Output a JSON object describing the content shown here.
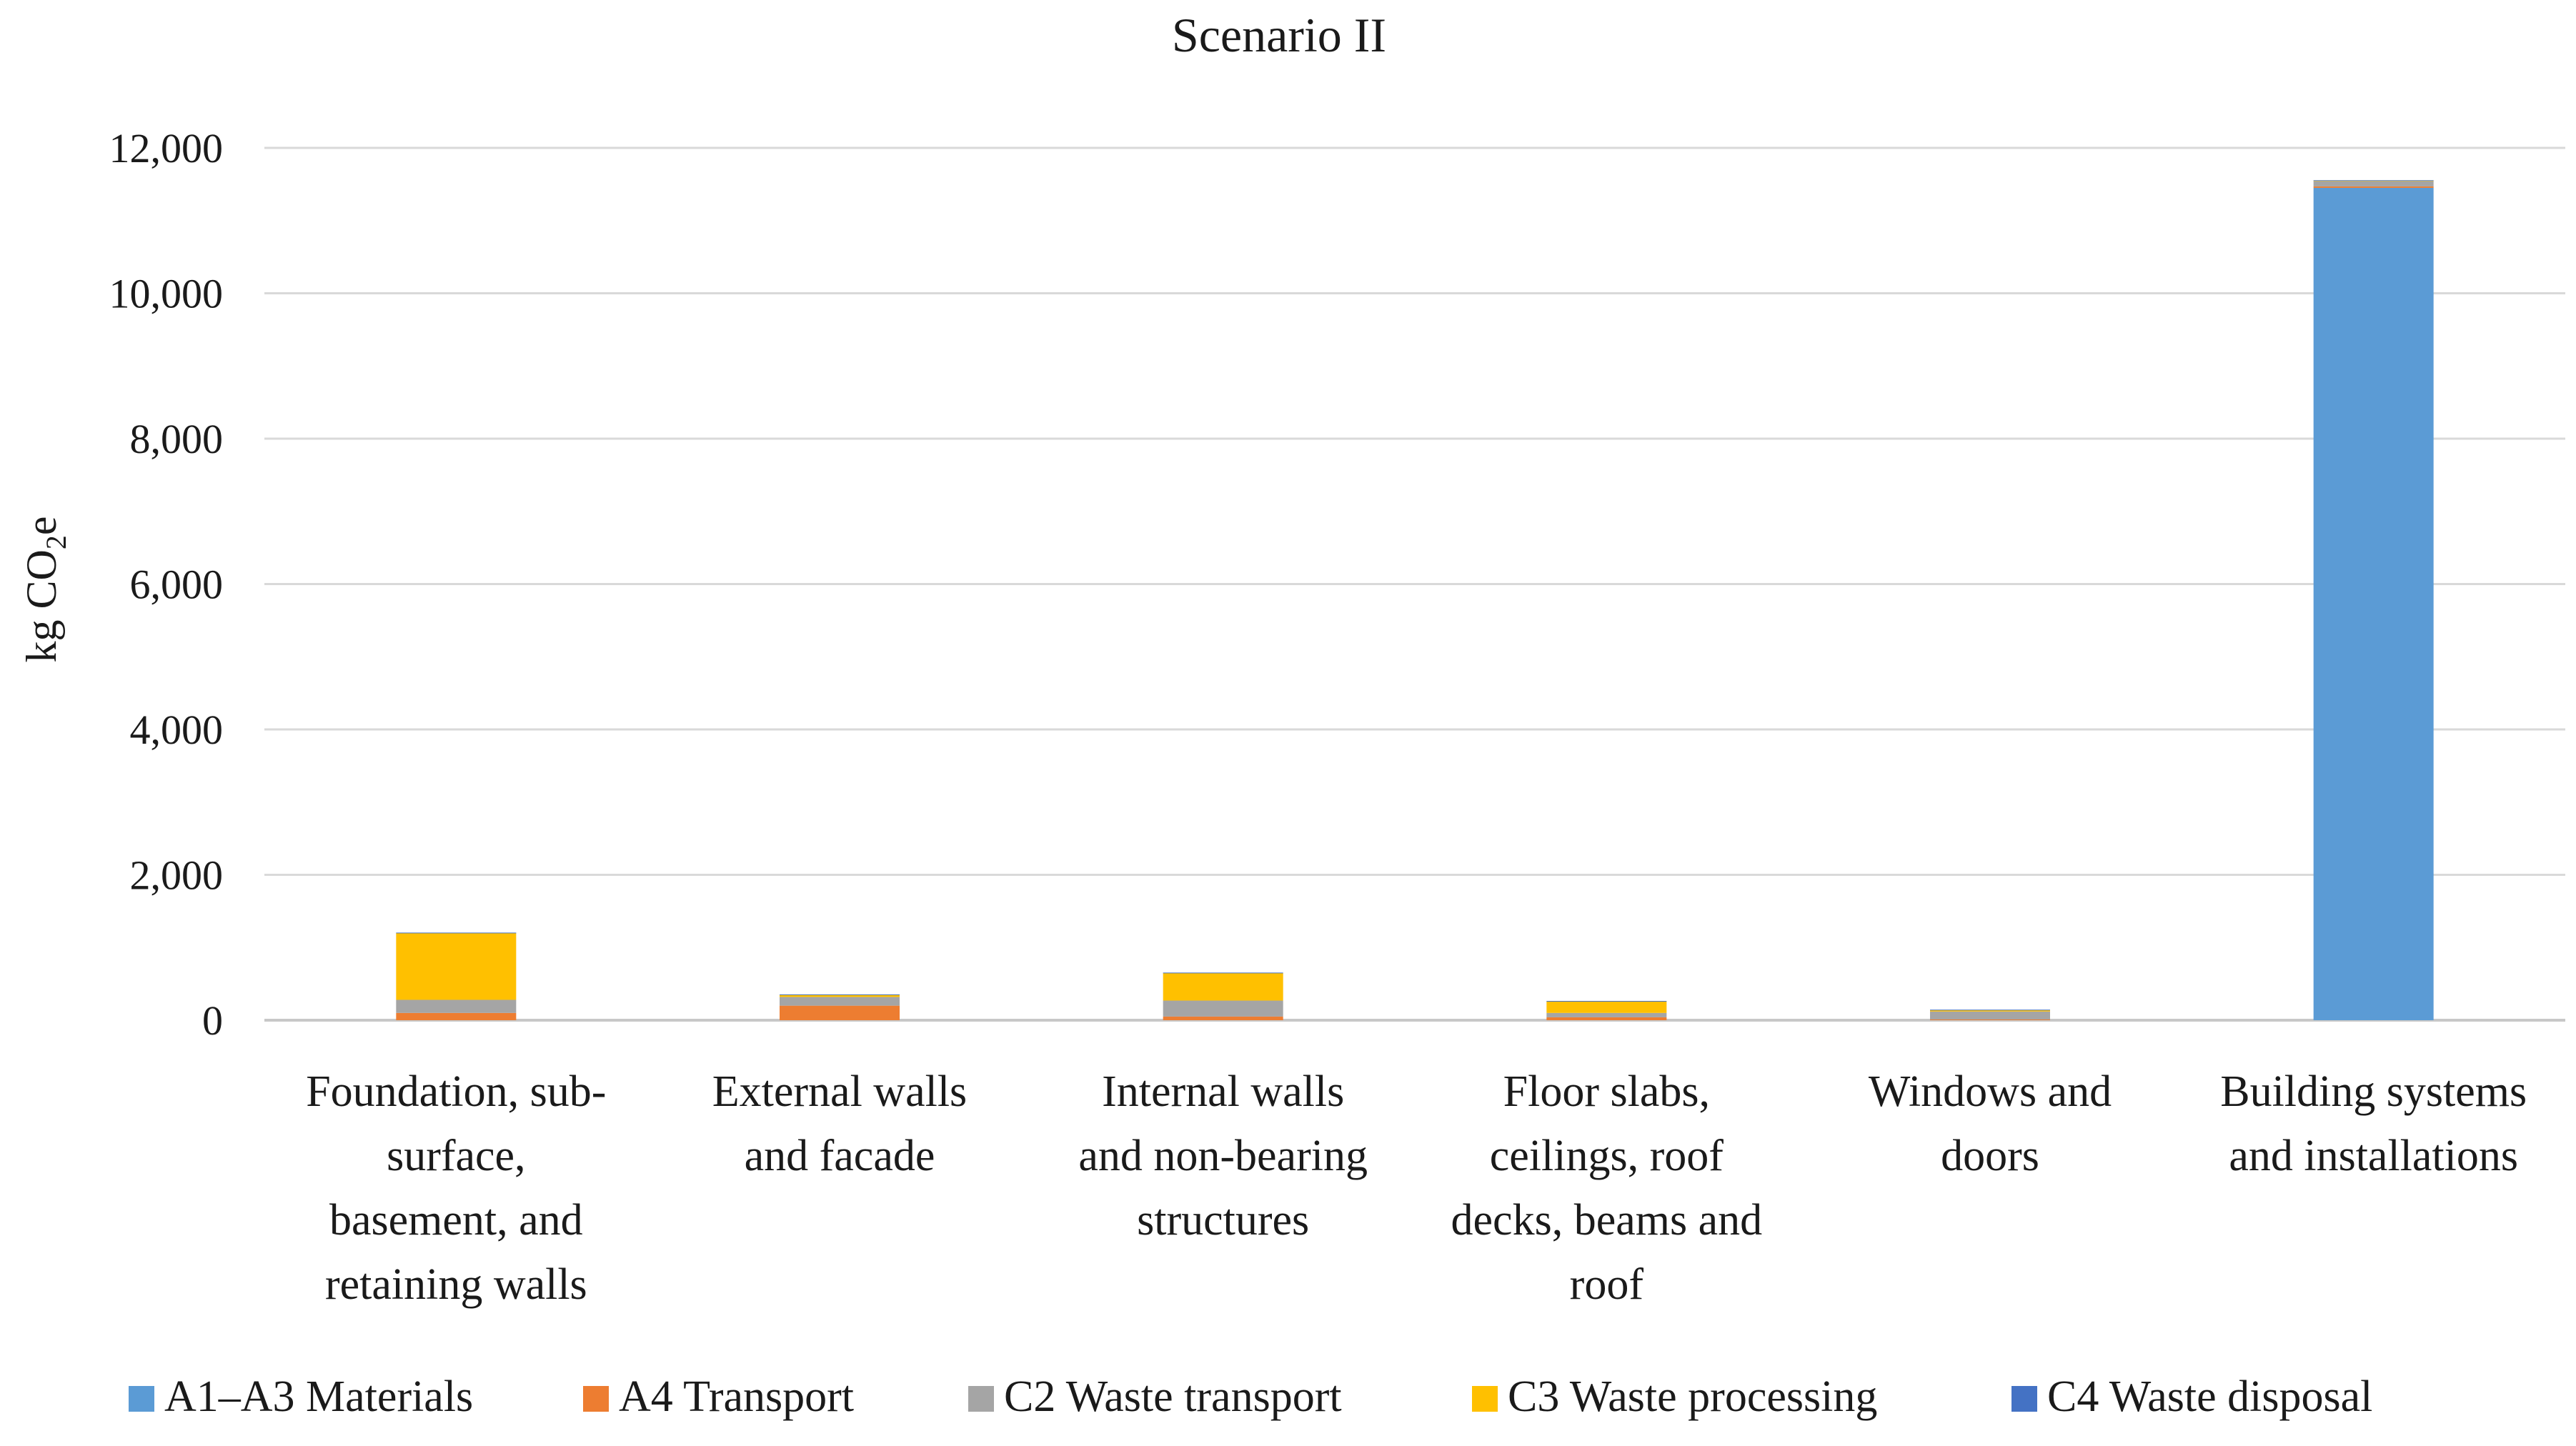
{
  "chart_data": {
    "type": "bar",
    "stacked": true,
    "title": "Scenario II",
    "ylabel_main": "kg CO",
    "ylabel_sub": "2",
    "ylabel_tail": "e",
    "xlabel": "",
    "ylim": [
      0,
      12000
    ],
    "yticks": [
      0,
      2000,
      4000,
      6000,
      8000,
      10000,
      12000
    ],
    "ytick_labels": [
      "0",
      "2,000",
      "4,000",
      "6,000",
      "8,000",
      "10,000",
      "12,000"
    ],
    "grid": true,
    "legend_position": "bottom",
    "categories": [
      [
        "Foundation, sub-",
        "surface,",
        "basement, and",
        "retaining walls"
      ],
      [
        "External walls",
        "and facade"
      ],
      [
        "Internal walls",
        "and non-bearing",
        "structures"
      ],
      [
        "Floor slabs,",
        "ceilings, roof",
        "decks, beams and",
        "roof"
      ],
      [
        "Windows and",
        "doors"
      ],
      [
        "Building systems",
        "and installations"
      ]
    ],
    "series": [
      {
        "name": "A1–A3 Materials",
        "color": "#5B9BD5",
        "values": [
          0,
          0,
          0,
          0,
          0,
          11450
        ]
      },
      {
        "name": "A4 Transport",
        "color": "#ED7D31",
        "values": [
          100,
          200,
          50,
          40,
          10,
          20
        ]
      },
      {
        "name": "C2 Waste transport",
        "color": "#A5A5A5",
        "values": [
          180,
          120,
          220,
          60,
          110,
          70
        ]
      },
      {
        "name": "C3 Waste processing",
        "color": "#FFC000",
        "values": [
          920,
          30,
          380,
          160,
          20,
          10
        ]
      },
      {
        "name": "C4 Waste disposal",
        "color": "#4472C4",
        "values": [
          5,
          5,
          5,
          5,
          5,
          5
        ]
      }
    ]
  }
}
